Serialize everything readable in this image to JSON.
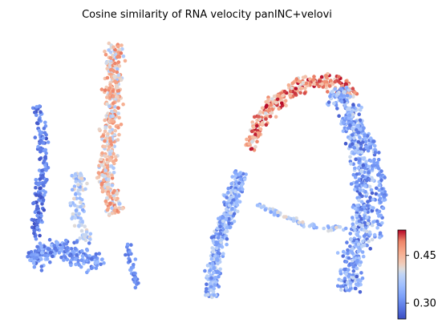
{
  "chart_data": {
    "type": "scatter",
    "title": "Cosine similarity of RNA velocity panINC+velovi",
    "xlabel": "",
    "ylabel": "",
    "axes_visible": false,
    "colormap": "coolwarm",
    "colorbar": {
      "label": "",
      "vmin": 0.25,
      "vmax": 0.53,
      "ticks": [
        0.3,
        0.45
      ],
      "tick_labels": [
        "0.30",
        "0.45"
      ],
      "placement": "right-bottom"
    },
    "groups": [
      {
        "name": "left-left-column",
        "approx_points": 170,
        "value_range": [
          0.25,
          0.33
        ]
      },
      {
        "name": "left-lower-blob",
        "approx_points": 230,
        "value_range": [
          0.27,
          0.36
        ]
      },
      {
        "name": "left-upper-trunk",
        "approx_points": 420,
        "value_range": [
          0.36,
          0.5
        ]
      },
      {
        "name": "right-ascending-left-arm",
        "approx_points": 360,
        "value_range": [
          0.28,
          0.4
        ]
      },
      {
        "name": "right-upper-arc",
        "approx_points": 340,
        "value_range": [
          0.4,
          0.53
        ]
      },
      {
        "name": "right-descending-right-arm",
        "approx_points": 620,
        "value_range": [
          0.26,
          0.4
        ]
      },
      {
        "name": "right-bridge",
        "approx_points": 70,
        "value_range": [
          0.32,
          0.42
        ]
      }
    ]
  }
}
